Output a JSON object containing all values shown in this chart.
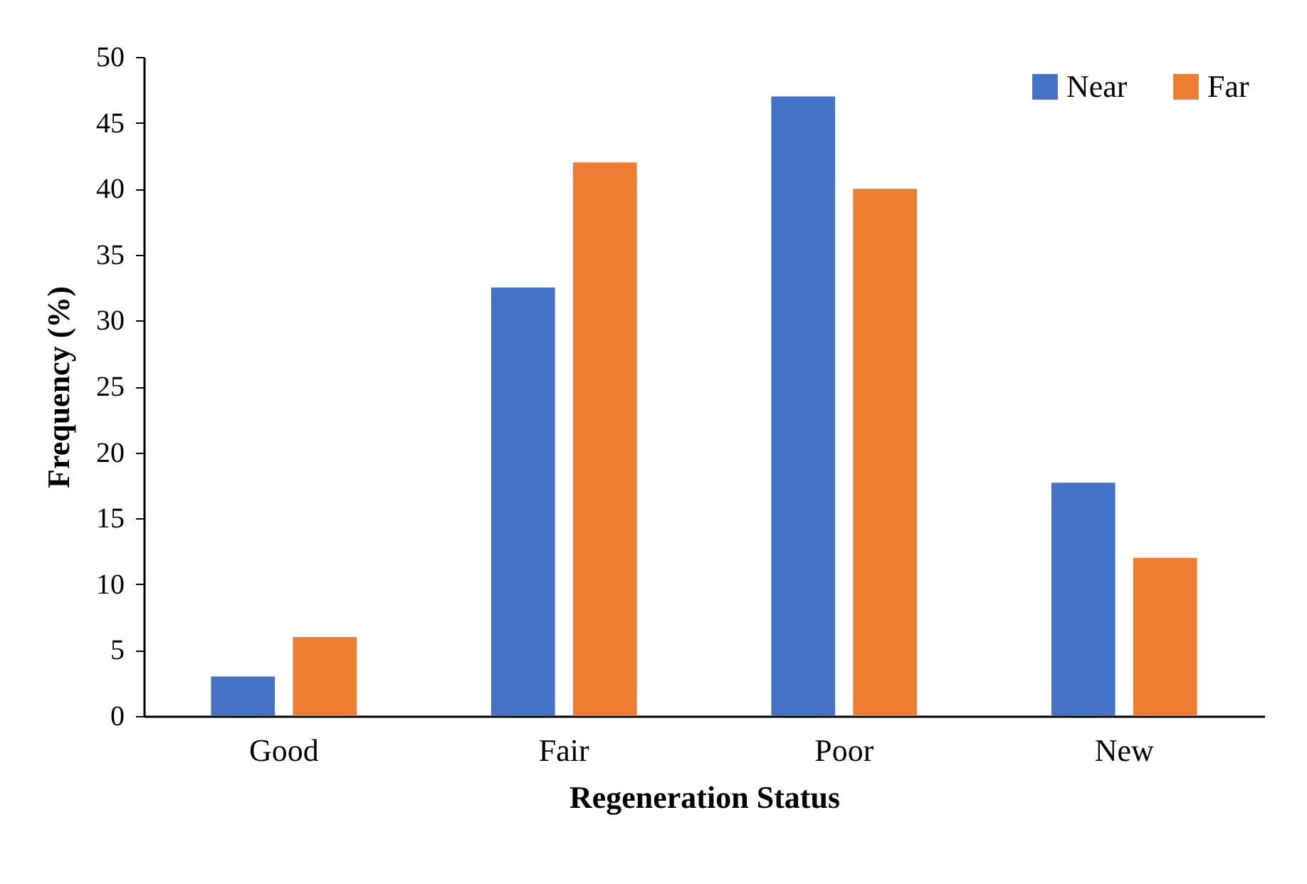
{
  "chart_data": {
    "type": "bar",
    "xlabel": "Regeneration Status",
    "ylabel": "Frequency (%)",
    "categories": [
      "Good",
      "Fair",
      "Poor",
      "New"
    ],
    "series": [
      {
        "name": "Near",
        "color": "#4472c4",
        "values": [
          3,
          32.5,
          47,
          17.7
        ]
      },
      {
        "name": "Far",
        "color": "#ed7d31",
        "values": [
          6,
          42,
          40,
          12
        ]
      }
    ],
    "ylim": [
      0,
      50
    ],
    "yticks": [
      0,
      5,
      10,
      15,
      20,
      25,
      30,
      35,
      40,
      45,
      50
    ],
    "grid": false,
    "legend": "top right"
  }
}
